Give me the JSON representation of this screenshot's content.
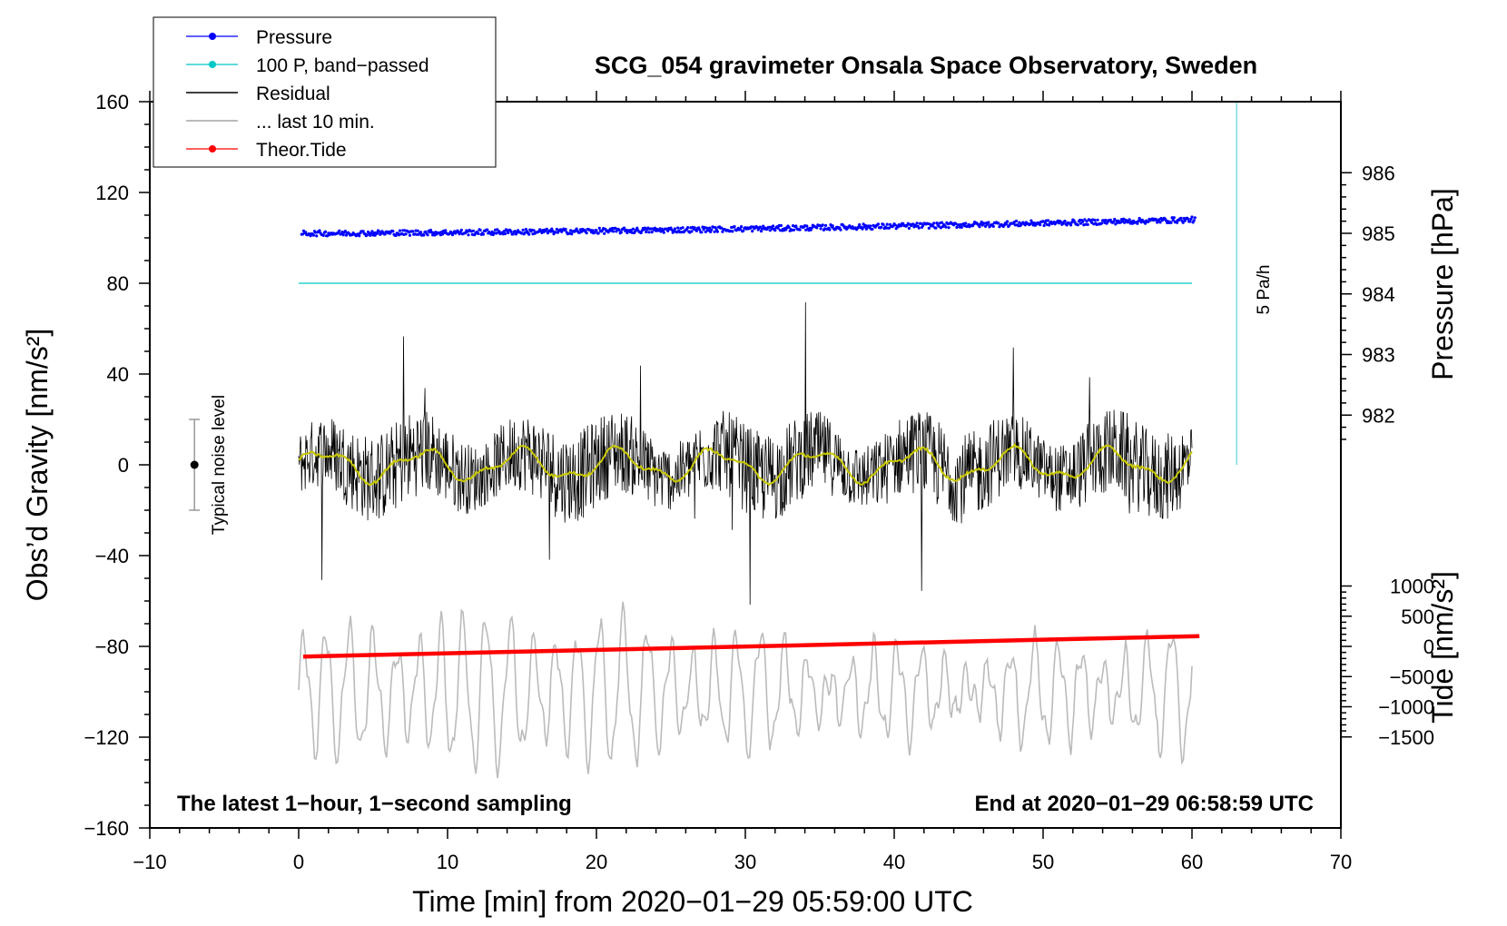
{
  "chart_data": {
    "type": "line",
    "title": "SCG_054 gravimeter Onsala Space Observatory, Sweden",
    "xlabel": "Time [min] from 2020−01−29 05:59:00 UTC",
    "ylabel_left": "Obs’d Gravity [nm/s²]",
    "ylabel_right_top": "Pressure [hPa]",
    "ylabel_right_bottom": "Tide [nm/s²]",
    "xlim": [
      -10,
      70
    ],
    "ylim": [
      -160,
      160
    ],
    "x_ticks": [
      "−10",
      "0",
      "10",
      "20",
      "30",
      "40",
      "50",
      "60",
      "70"
    ],
    "y_ticks": [
      "160",
      "120",
      "80",
      "40",
      "0",
      "−40",
      "−80",
      "−120",
      "−160"
    ],
    "pressure_axis": {
      "ticks": [
        986,
        985,
        984,
        983,
        982
      ],
      "gravity_at_985": 102,
      "gravity_per_hPa": 26.7
    },
    "tide_axis": {
      "ticks": [
        "1000",
        "500",
        "0",
        "−500",
        "−1000",
        "−1500"
      ],
      "gravity_at_0": -80,
      "gravity_per_500": 13.3
    },
    "legend": [
      "Pressure",
      "100 P, band−passed",
      "Residual",
      "... last 10 min.",
      "Theor.Tide"
    ],
    "series": [
      {
        "name": "Pressure",
        "color": "#0000ff",
        "style": "points",
        "x_range": [
          0.2,
          60.2
        ],
        "y_start": 102,
        "y_end": 108,
        "noise": 1.2
      },
      {
        "name": "100 P, band−passed",
        "color": "#00c8c8",
        "style": "line",
        "x": [
          0,
          60
        ],
        "y": [
          80,
          80
        ]
      },
      {
        "name": "Residual",
        "color": "#000000",
        "style": "line",
        "x_range": [
          0,
          60
        ],
        "typical_range": [
          -30,
          40
        ]
      },
      {
        "name": "Residual smoothed",
        "color": "#c8c800",
        "style": "line",
        "x_range": [
          0,
          60
        ],
        "typical_range": [
          -10,
          10
        ]
      },
      {
        "name": "... last 10 min.",
        "color": "#bbbbbb",
        "style": "line",
        "x_range": [
          0,
          60
        ],
        "center": -100,
        "typical_range": [
          -140,
          -60
        ]
      },
      {
        "name": "Theor.Tide",
        "color": "#ff0000",
        "style": "line",
        "x": [
          0.3,
          60.5
        ],
        "y": [
          -84.5,
          -75.5
        ]
      }
    ],
    "noise_bar": {
      "label": "Typical noise level",
      "x": -7,
      "y": 0,
      "y_low": -20,
      "y_high": 20
    },
    "scale_bar": {
      "label": "5 Pa/h",
      "x": 63,
      "y_low": 0,
      "y_high": 160
    },
    "note_left": "The latest 1−hour, 1−second sampling",
    "note_right": "End at 2020−01−29 06:58:59 UTC"
  }
}
